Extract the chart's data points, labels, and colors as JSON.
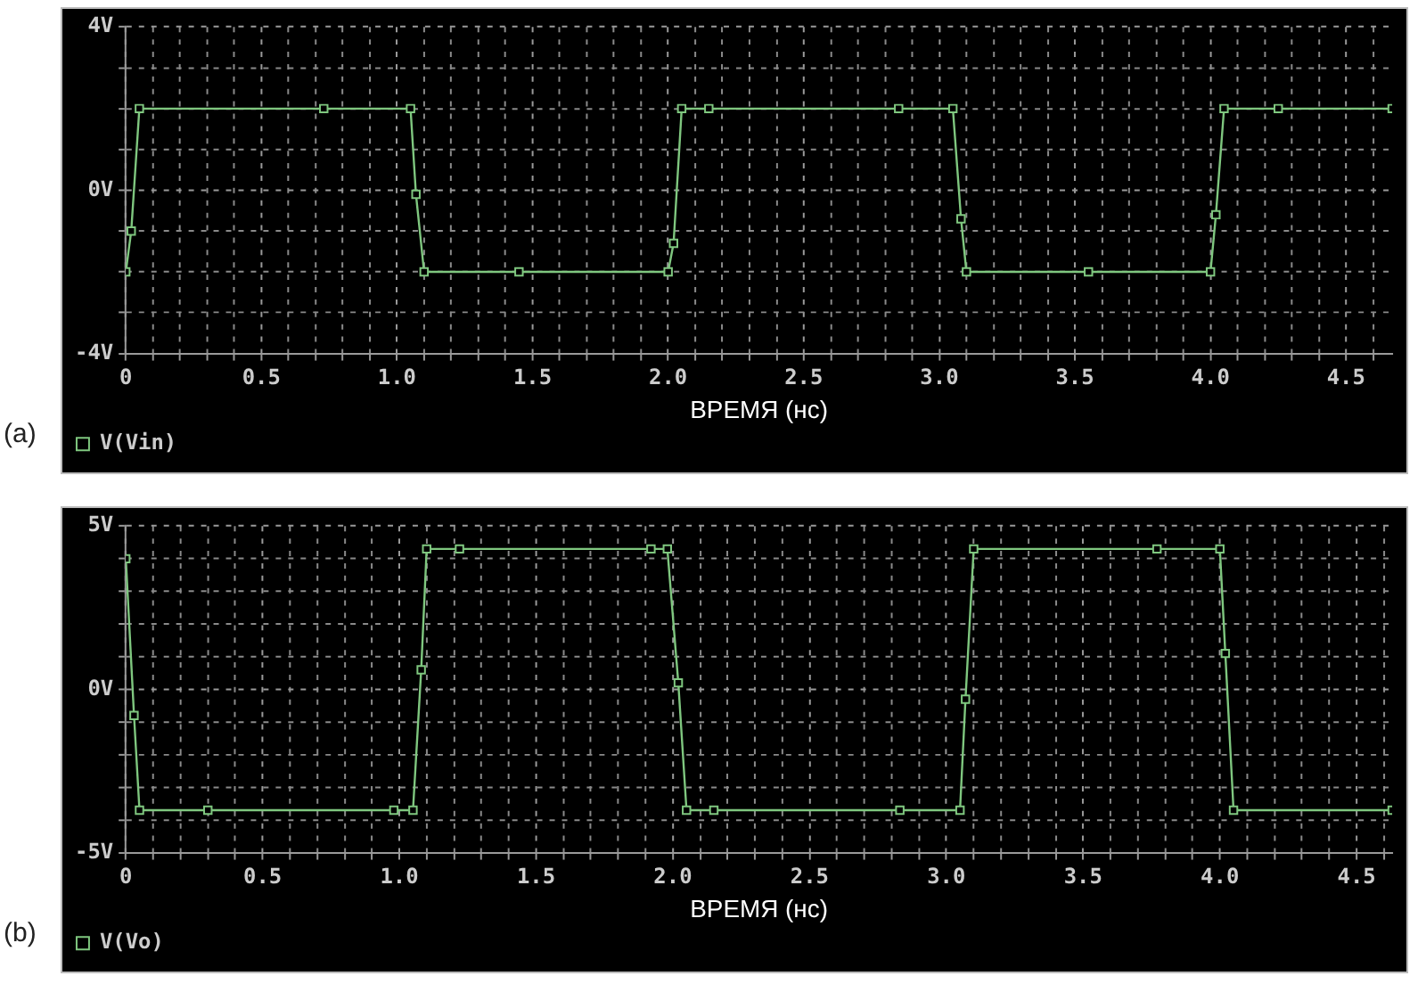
{
  "chart_data": [
    {
      "type": "line",
      "xlabel": "ВРЕМЯ (нс)",
      "annotations": [
        "(a)"
      ],
      "xlim": [
        0,
        4.67
      ],
      "ylim": [
        -4,
        4
      ],
      "xticks": [
        {
          "value": 0,
          "label": "0"
        },
        {
          "value": 0.1,
          "label": null
        },
        {
          "value": 0.2,
          "label": null
        },
        {
          "value": 0.3,
          "label": null
        },
        {
          "value": 0.4,
          "label": null
        },
        {
          "value": 0.5,
          "label": "0.5"
        },
        {
          "value": 0.6,
          "label": null
        },
        {
          "value": 0.7,
          "label": null
        },
        {
          "value": 0.8,
          "label": null
        },
        {
          "value": 0.9,
          "label": null
        },
        {
          "value": 1,
          "label": "1.0"
        },
        {
          "value": 1.1,
          "label": null
        },
        {
          "value": 1.2,
          "label": null
        },
        {
          "value": 1.3,
          "label": null
        },
        {
          "value": 1.4,
          "label": null
        },
        {
          "value": 1.5,
          "label": "1.5"
        },
        {
          "value": 1.6,
          "label": null
        },
        {
          "value": 1.7,
          "label": null
        },
        {
          "value": 1.8,
          "label": null
        },
        {
          "value": 1.9,
          "label": null
        },
        {
          "value": 2,
          "label": "2.0"
        },
        {
          "value": 2.1,
          "label": null
        },
        {
          "value": 2.2,
          "label": null
        },
        {
          "value": 2.3,
          "label": null
        },
        {
          "value": 2.4,
          "label": null
        },
        {
          "value": 2.5,
          "label": "2.5"
        },
        {
          "value": 2.6,
          "label": null
        },
        {
          "value": 2.7,
          "label": null
        },
        {
          "value": 2.8,
          "label": null
        },
        {
          "value": 2.9,
          "label": null
        },
        {
          "value": 3,
          "label": "3.0"
        },
        {
          "value": 3.1,
          "label": null
        },
        {
          "value": 3.2,
          "label": null
        },
        {
          "value": 3.3,
          "label": null
        },
        {
          "value": 3.4,
          "label": null
        },
        {
          "value": 3.5,
          "label": "3.5"
        },
        {
          "value": 3.6,
          "label": null
        },
        {
          "value": 3.7,
          "label": null
        },
        {
          "value": 3.8,
          "label": null
        },
        {
          "value": 3.9,
          "label": null
        },
        {
          "value": 4,
          "label": "4.0"
        },
        {
          "value": 4.1,
          "label": null
        },
        {
          "value": 4.2,
          "label": null
        },
        {
          "value": 4.3,
          "label": null
        },
        {
          "value": 4.4,
          "label": null
        },
        {
          "value": 4.5,
          "label": "4.5"
        },
        {
          "value": 4.6,
          "label": null
        }
      ],
      "yticks": [
        {
          "value": -4,
          "label": "-4V"
        },
        {
          "value": -3,
          "label": null
        },
        {
          "value": -2,
          "label": null
        },
        {
          "value": -1,
          "label": null
        },
        {
          "value": 0,
          "label": "0V"
        },
        {
          "value": 1,
          "label": null
        },
        {
          "value": 2,
          "label": null
        },
        {
          "value": 3,
          "label": null
        },
        {
          "value": 4,
          "label": "4V"
        }
      ],
      "grid": true,
      "legend": "bottom left",
      "marker": "square",
      "line_style": "solid",
      "series": [
        {
          "name": "V(Vin)",
          "color": "#7fc77f",
          "x": [
            0,
            0.02,
            0.05,
            0.73,
            1.05,
            1.07,
            1.1,
            1.45,
            2.0,
            2.02,
            2.05,
            2.15,
            2.85,
            3.05,
            3.08,
            3.1,
            3.55,
            4.0,
            4.02,
            4.05,
            4.25,
            4.67
          ],
          "values": [
            -2,
            -1,
            2,
            2,
            2,
            -0.1,
            -2,
            -2,
            -2,
            -1.3,
            2,
            2,
            2,
            2,
            -0.7,
            -2,
            -2,
            -2,
            -0.6,
            2,
            2,
            2
          ]
        }
      ]
    },
    {
      "type": "line",
      "xlabel": "ВРЕМЯ (нс)",
      "annotations": [
        "(b)"
      ],
      "xlim": [
        0,
        4.63
      ],
      "ylim": [
        -5,
        5
      ],
      "xticks": [
        {
          "value": 0,
          "label": "0"
        },
        {
          "value": 0.1,
          "label": null
        },
        {
          "value": 0.2,
          "label": null
        },
        {
          "value": 0.3,
          "label": null
        },
        {
          "value": 0.4,
          "label": null
        },
        {
          "value": 0.5,
          "label": "0.5"
        },
        {
          "value": 0.6,
          "label": null
        },
        {
          "value": 0.7,
          "label": null
        },
        {
          "value": 0.8,
          "label": null
        },
        {
          "value": 0.9,
          "label": null
        },
        {
          "value": 1,
          "label": "1.0"
        },
        {
          "value": 1.1,
          "label": null
        },
        {
          "value": 1.2,
          "label": null
        },
        {
          "value": 1.3,
          "label": null
        },
        {
          "value": 1.4,
          "label": null
        },
        {
          "value": 1.5,
          "label": "1.5"
        },
        {
          "value": 1.6,
          "label": null
        },
        {
          "value": 1.7,
          "label": null
        },
        {
          "value": 1.8,
          "label": null
        },
        {
          "value": 1.9,
          "label": null
        },
        {
          "value": 2,
          "label": "2.0"
        },
        {
          "value": 2.1,
          "label": null
        },
        {
          "value": 2.2,
          "label": null
        },
        {
          "value": 2.3,
          "label": null
        },
        {
          "value": 2.4,
          "label": null
        },
        {
          "value": 2.5,
          "label": "2.5"
        },
        {
          "value": 2.6,
          "label": null
        },
        {
          "value": 2.7,
          "label": null
        },
        {
          "value": 2.8,
          "label": null
        },
        {
          "value": 2.9,
          "label": null
        },
        {
          "value": 3,
          "label": "3.0"
        },
        {
          "value": 3.1,
          "label": null
        },
        {
          "value": 3.2,
          "label": null
        },
        {
          "value": 3.3,
          "label": null
        },
        {
          "value": 3.4,
          "label": null
        },
        {
          "value": 3.5,
          "label": "3.5"
        },
        {
          "value": 3.6,
          "label": null
        },
        {
          "value": 3.7,
          "label": null
        },
        {
          "value": 3.8,
          "label": null
        },
        {
          "value": 3.9,
          "label": null
        },
        {
          "value": 4,
          "label": "4.0"
        },
        {
          "value": 4.1,
          "label": null
        },
        {
          "value": 4.2,
          "label": null
        },
        {
          "value": 4.3,
          "label": null
        },
        {
          "value": 4.4,
          "label": null
        },
        {
          "value": 4.5,
          "label": "4.5"
        },
        {
          "value": 4.6,
          "label": null
        }
      ],
      "yticks": [
        {
          "value": -5,
          "label": "-5V"
        },
        {
          "value": -4,
          "label": null
        },
        {
          "value": -3,
          "label": null
        },
        {
          "value": -2,
          "label": null
        },
        {
          "value": -1,
          "label": null
        },
        {
          "value": 0,
          "label": "0V"
        },
        {
          "value": 1,
          "label": null
        },
        {
          "value": 2,
          "label": null
        },
        {
          "value": 3,
          "label": null
        },
        {
          "value": 4,
          "label": null
        },
        {
          "value": 5,
          "label": "5V"
        }
      ],
      "grid": true,
      "legend": "bottom left",
      "marker": "square",
      "line_style": "solid",
      "series": [
        {
          "name": "V(Vo)",
          "color": "#7fc77f",
          "x": [
            0,
            0.03,
            0.05,
            0.3,
            0.98,
            1.05,
            1.08,
            1.1,
            1.22,
            1.92,
            1.98,
            2.02,
            2.05,
            2.15,
            2.83,
            3.05,
            3.07,
            3.1,
            3.77,
            4.0,
            4.02,
            4.05,
            4.63
          ],
          "values": [
            4,
            -0.8,
            -3.7,
            -3.7,
            -3.7,
            -3.7,
            0.6,
            4.3,
            4.3,
            4.3,
            4.3,
            0.2,
            -3.7,
            -3.7,
            -3.7,
            -3.7,
            -0.3,
            4.3,
            4.3,
            4.3,
            1.1,
            -3.7,
            -3.7
          ]
        }
      ]
    }
  ]
}
